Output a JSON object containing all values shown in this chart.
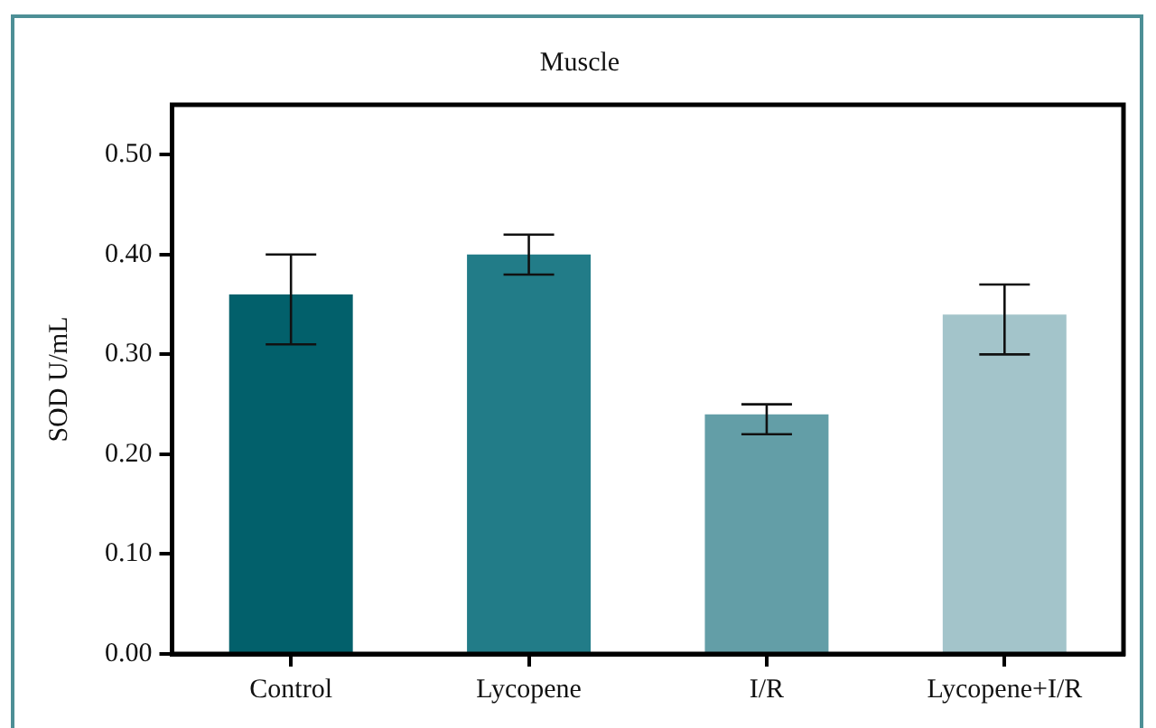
{
  "chart_data": {
    "type": "bar",
    "title": "Muscle",
    "ylabel": "SOD U/mL",
    "categories": [
      "Control",
      "Lycopene",
      "I/R",
      "Lycopene+I/R"
    ],
    "values": [
      0.36,
      0.4,
      0.24,
      0.34
    ],
    "colors": [
      "#02606b",
      "#227c88",
      "#639ea7",
      "#a3c4ca"
    ],
    "errors": [
      [
        0.31,
        0.4
      ],
      [
        0.38,
        0.42
      ],
      [
        0.22,
        0.25
      ],
      [
        0.3,
        0.37
      ]
    ],
    "ylim": [
      0,
      0.55
    ],
    "yticks": [
      {
        "value": 0,
        "label": "0.00"
      },
      {
        "value": 0.1,
        "label": "0.10"
      },
      {
        "value": 0.2,
        "label": "0.20"
      },
      {
        "value": 0.3,
        "label": "0.30"
      },
      {
        "value": 0.4,
        "label": "0.40"
      },
      {
        "value": 0.5,
        "label": "0.50"
      }
    ],
    "grid": false,
    "legend": false
  }
}
